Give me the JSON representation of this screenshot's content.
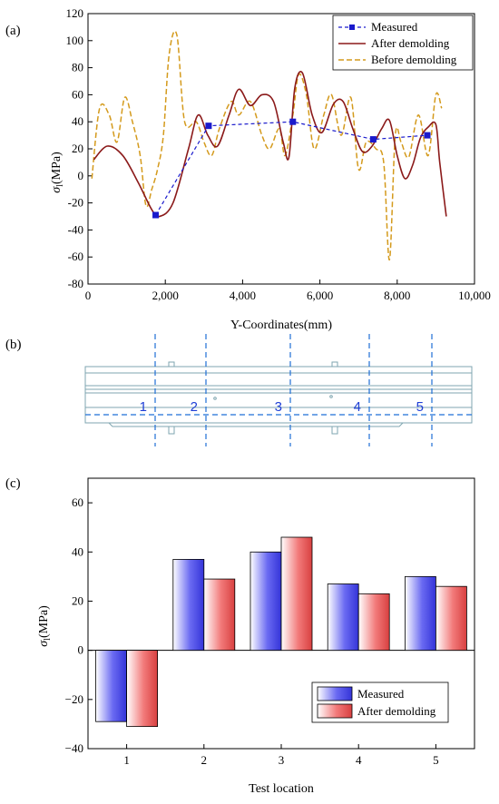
{
  "panels": {
    "a": "(a)",
    "b": "(b)",
    "c": "(c)"
  },
  "chart_data": [
    {
      "type": "line",
      "panel": "(a)",
      "xlabel": "Y-Coordinates(mm)",
      "ylabel_symbol": "σ",
      "ylabel_subscript": "l",
      "ylabel_unit": "(MPa)",
      "xlim": [
        0,
        10000
      ],
      "ylim": [
        -80,
        120
      ],
      "xticks": [
        0,
        2000,
        4000,
        6000,
        8000,
        10000
      ],
      "xtick_labels": [
        "0",
        "2,000",
        "4,000",
        "6,000",
        "8,000",
        "10,000"
      ],
      "yticks": [
        -80,
        -60,
        -40,
        -20,
        0,
        20,
        40,
        60,
        80,
        100,
        120
      ],
      "legend_position": "top-right",
      "series": [
        {
          "name": "Measured",
          "color": "#1a1acc",
          "style": "dashed-square-markers",
          "x": [
            1750,
            3120,
            5300,
            7380,
            8780
          ],
          "y": [
            -29,
            37,
            40,
            27,
            30
          ]
        },
        {
          "name": "After demolding",
          "color": "#8b1a1a",
          "style": "solid",
          "x": [
            150,
            500,
            900,
            1300,
            1650,
            1850,
            2200,
            2600,
            2850,
            3100,
            3350,
            3650,
            3900,
            4200,
            4500,
            4800,
            5050,
            5200,
            5350,
            5550,
            5800,
            6050,
            6350,
            6600,
            6850,
            7100,
            7350,
            7600,
            7800,
            8000,
            8200,
            8400,
            8600,
            8800,
            9000,
            9100,
            9270
          ],
          "y": [
            12,
            22,
            15,
            -5,
            -25,
            -30,
            -20,
            20,
            45,
            30,
            22,
            45,
            64,
            52,
            60,
            55,
            25,
            14,
            65,
            76,
            45,
            32,
            53,
            55,
            35,
            18,
            22,
            35,
            41,
            15,
            -2,
            8,
            28,
            36,
            38,
            10,
            -30
          ]
        },
        {
          "name": "Before demolding",
          "color": "#d49a1c",
          "style": "dashed",
          "x": [
            100,
            300,
            550,
            750,
            950,
            1150,
            1350,
            1500,
            1650,
            1800,
            1950,
            2100,
            2300,
            2500,
            2800,
            3000,
            3200,
            3400,
            3700,
            3900,
            4200,
            4500,
            4700,
            4950,
            5100,
            5300,
            5450,
            5650,
            5850,
            6100,
            6300,
            6550,
            6800,
            7000,
            7200,
            7450,
            7650,
            7800,
            7950,
            8100,
            8300,
            8550,
            8800,
            9000,
            9150
          ],
          "y": [
            -2,
            50,
            45,
            25,
            58,
            40,
            15,
            -22,
            -10,
            5,
            30,
            90,
            104,
            40,
            40,
            25,
            15,
            35,
            55,
            45,
            55,
            30,
            20,
            35,
            15,
            45,
            75,
            60,
            20,
            45,
            60,
            30,
            58,
            5,
            25,
            20,
            10,
            -62,
            30,
            25,
            14,
            45,
            15,
            60,
            50
          ]
        }
      ]
    },
    {
      "type": "bar",
      "panel": "(c)",
      "categories": [
        "1",
        "2",
        "3",
        "4",
        "5"
      ],
      "xlabel": "Test location",
      "ylabel_symbol": "σ",
      "ylabel_subscript": "l",
      "ylabel_unit": "(MPa)",
      "ylim": [
        -40,
        70
      ],
      "yticks": [
        -40,
        -20,
        0,
        20,
        40,
        60
      ],
      "yticks_labels": [
        "−40",
        "−20",
        "0",
        "20",
        "40",
        "60"
      ],
      "legend_position": "bottom-right",
      "series": [
        {
          "name": "Measured",
          "color": "#6666ee",
          "values": [
            -29,
            37,
            40,
            27,
            30
          ]
        },
        {
          "name": "After demolding",
          "color": "#ee7777",
          "values": [
            -31,
            29,
            46,
            23,
            26
          ]
        }
      ]
    }
  ],
  "schematic": {
    "section_labels": [
      "1",
      "2",
      "3",
      "4",
      "5"
    ],
    "section_line_color": "#1f6fd6",
    "outline_color": "#7fa6b0"
  }
}
